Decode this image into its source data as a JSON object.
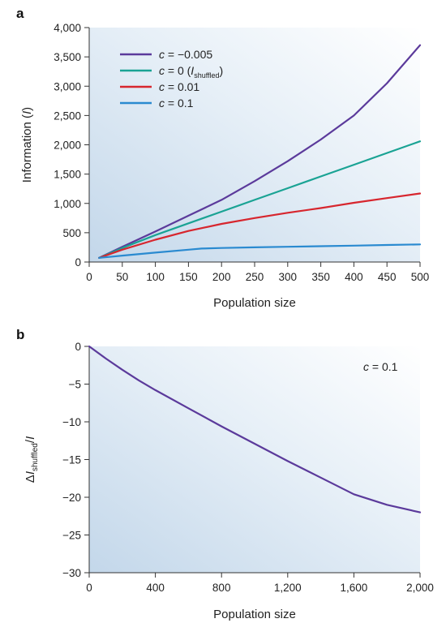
{
  "chart_data": [
    {
      "type": "line",
      "panel_label": "a",
      "xlabel": "Population size",
      "ylabel_main": "Information (",
      "ylabel_symbol": "I",
      "ylabel_close": ")",
      "xlim": [
        0,
        500
      ],
      "ylim": [
        0,
        4000
      ],
      "x_ticks": [
        0,
        50,
        100,
        150,
        200,
        250,
        300,
        350,
        400,
        450,
        500
      ],
      "x_tick_labels": [
        "0",
        "50",
        "100",
        "150",
        "200",
        "250",
        "300",
        "350",
        "400",
        "450",
        "500"
      ],
      "y_ticks": [
        0,
        500,
        1000,
        1500,
        2000,
        2500,
        3000,
        3500,
        4000
      ],
      "y_tick_labels": [
        "0",
        "500",
        "1,000",
        "1,500",
        "2,000",
        "2,500",
        "3,000",
        "3,500",
        "4,000"
      ],
      "grid": false,
      "legend_position": "top-left",
      "series": [
        {
          "color": "#5b3a9b",
          "legend_var": "c",
          "legend_eq": " = −0.005",
          "legend_extra": "",
          "legend_sub": "",
          "legend_tail": "",
          "x": [
            15,
            50,
            100,
            150,
            200,
            250,
            300,
            350,
            400,
            450,
            500
          ],
          "y": [
            70,
            260,
            520,
            790,
            1060,
            1380,
            1720,
            2090,
            2500,
            3050,
            3700
          ]
        },
        {
          "color": "#1aa394",
          "legend_var": "c",
          "legend_eq": " = 0 (",
          "legend_extra": "I",
          "legend_sub": "shuffled",
          "legend_tail": ")",
          "x": [
            15,
            50,
            100,
            150,
            200,
            250,
            300,
            350,
            400,
            450,
            500
          ],
          "y": [
            70,
            240,
            460,
            660,
            860,
            1060,
            1260,
            1460,
            1660,
            1860,
            2060
          ]
        },
        {
          "color": "#d7262e",
          "legend_var": "c",
          "legend_eq": " = 0.01",
          "legend_extra": "",
          "legend_sub": "",
          "legend_tail": "",
          "x": [
            15,
            50,
            100,
            150,
            200,
            250,
            300,
            350,
            400,
            450,
            500
          ],
          "y": [
            70,
            210,
            380,
            530,
            650,
            750,
            840,
            920,
            1010,
            1090,
            1170
          ]
        },
        {
          "color": "#2a8ad0",
          "legend_var": "c",
          "legend_eq": " = 0.1",
          "legend_extra": "",
          "legend_sub": "",
          "legend_tail": "",
          "x": [
            15,
            50,
            100,
            150,
            170,
            200,
            250,
            300,
            350,
            400,
            450,
            500
          ],
          "y": [
            70,
            110,
            160,
            210,
            230,
            240,
            250,
            260,
            270,
            280,
            290,
            300
          ]
        }
      ]
    },
    {
      "type": "line",
      "panel_label": "b",
      "xlabel": "Population size",
      "ylabel_prefix": "Δ",
      "ylabel_symbol": "I",
      "ylabel_sub": "shuffled",
      "ylabel_tail": "/",
      "ylabel_symbol2": "I",
      "xlim": [
        0,
        2000
      ],
      "ylim": [
        -30,
        0
      ],
      "x_ticks": [
        0,
        400,
        800,
        1200,
        1600,
        2000
      ],
      "x_tick_labels": [
        "0",
        "400",
        "800",
        "1,200",
        "1,600",
        "2,000"
      ],
      "y_ticks": [
        0,
        -5,
        -10,
        -15,
        -20,
        -25,
        -30
      ],
      "y_tick_labels": [
        "0",
        "−5",
        "−10",
        "−15",
        "−20",
        "−25",
        "−30"
      ],
      "grid": false,
      "annotation_var": "c",
      "annotation_eq": " = 0.1",
      "series": [
        {
          "color": "#5b3a9b",
          "x": [
            0,
            100,
            200,
            300,
            400,
            600,
            800,
            1000,
            1200,
            1400,
            1600,
            1800,
            2000
          ],
          "y": [
            0,
            -1.6,
            -3.1,
            -4.5,
            -5.8,
            -8.2,
            -10.6,
            -12.9,
            -15.2,
            -17.4,
            -19.6,
            -21.0,
            -22.0
          ]
        }
      ]
    }
  ]
}
